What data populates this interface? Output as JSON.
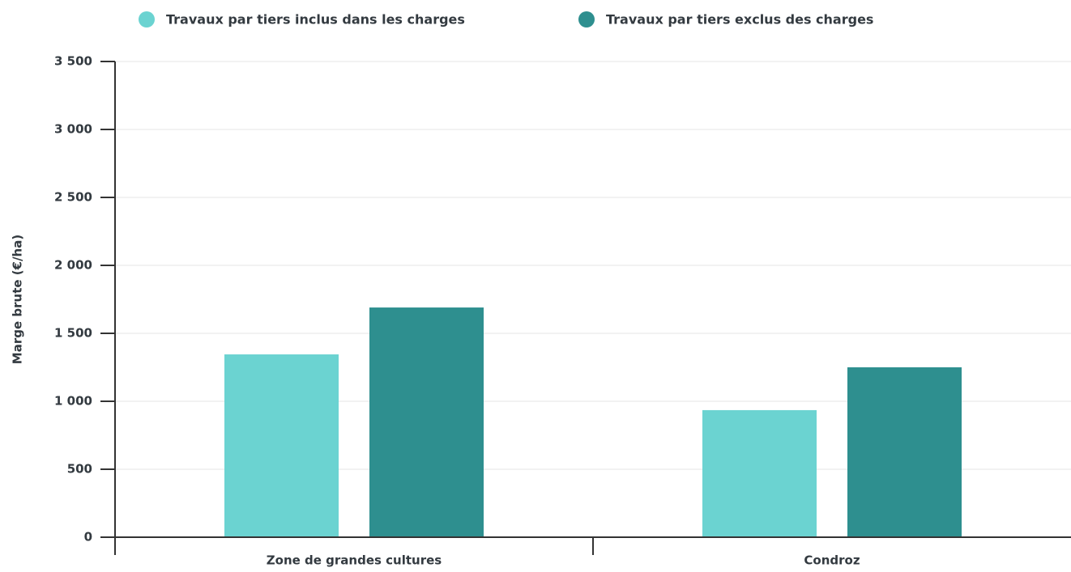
{
  "chart_data": {
    "type": "bar",
    "y_label": "Marge brute (€/ha)",
    "categories": [
      "Zone de grandes cultures",
      "Condroz"
    ],
    "series": [
      {
        "name": "Travaux par tiers inclus dans les charges",
        "color": "#6bd3d1",
        "values": [
          1345,
          935
        ]
      },
      {
        "name": "Travaux par tiers exclus des charges",
        "color": "#2e8f8f",
        "values": [
          1690,
          1250
        ]
      }
    ],
    "ylim": [
      0,
      3500
    ],
    "yticks": [
      0,
      500,
      {
        "value": 1000,
        "label": "1 000"
      },
      {
        "value": 1500,
        "label": "1 500"
      },
      {
        "value": 2000,
        "label": "2 000"
      },
      {
        "value": 2500,
        "label": "2 500"
      },
      {
        "value": 3000,
        "label": "3 000"
      },
      {
        "value": 3500,
        "label": "3 500"
      }
    ],
    "grid": true
  }
}
